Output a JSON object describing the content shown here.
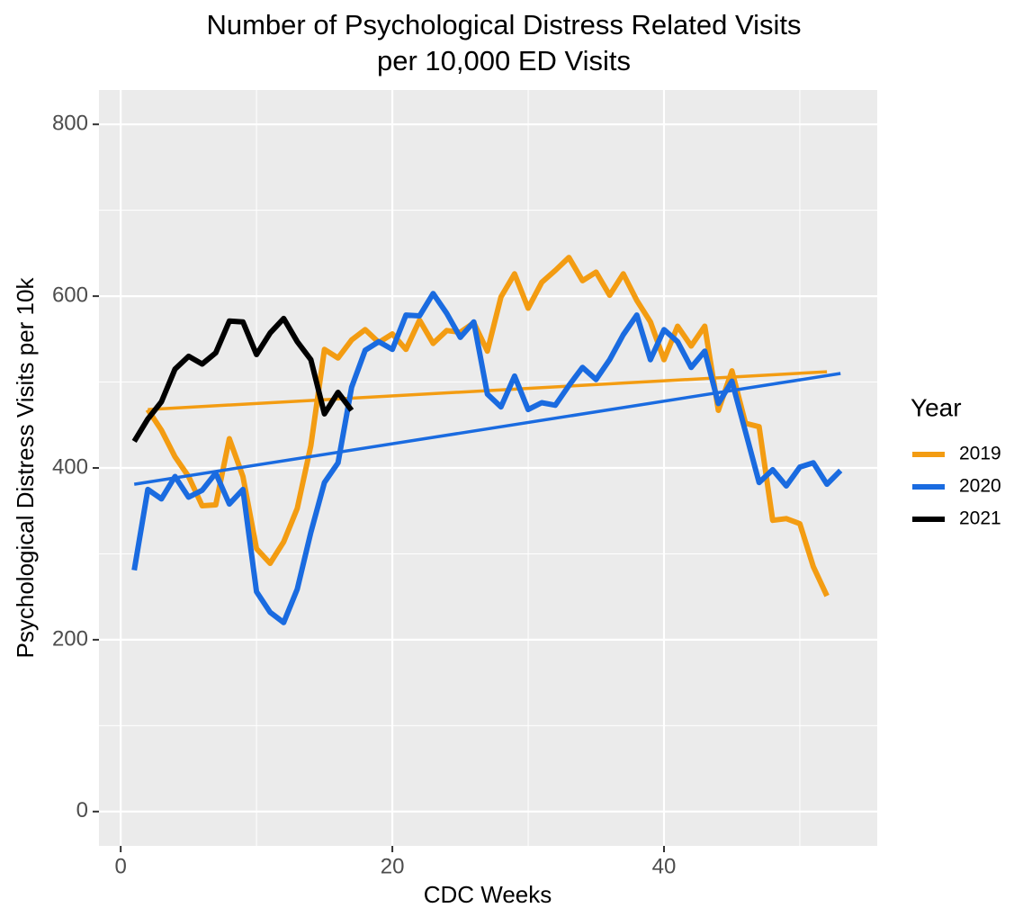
{
  "chart_data": {
    "type": "line",
    "title": "Number of Psychological Distress Related Visits",
    "subtitle": "per 10,000 ED Visits",
    "x_label": "CDC Weeks",
    "y_label": "Psychological Distress Visits per 10k",
    "legend_title": "Year",
    "legend_position": "right",
    "grid": true,
    "xlim": [
      -1.6,
      55.7
    ],
    "ylim": [
      -40,
      840
    ],
    "xticks": [
      0,
      20,
      40
    ],
    "yticks": [
      0,
      200,
      400,
      600,
      800
    ],
    "xminorticks": [
      10,
      30,
      50
    ],
    "yminorticks": [
      100,
      300,
      500,
      700
    ],
    "series": [
      {
        "name": "2019",
        "color": "#f39c12",
        "x": [
          2,
          3,
          4,
          5,
          6,
          7,
          8,
          9,
          10,
          11,
          12,
          13,
          14,
          15,
          16,
          17,
          18,
          19,
          20,
          21,
          22,
          23,
          24,
          25,
          26,
          27,
          28,
          29,
          30,
          31,
          32,
          33,
          34,
          35,
          36,
          37,
          38,
          39,
          40,
          41,
          42,
          43,
          44,
          45,
          46,
          47,
          48,
          49,
          50,
          51,
          52
        ],
        "values": [
          468,
          444,
          413,
          390,
          356,
          357,
          434,
          390,
          306,
          289,
          314,
          353,
          426,
          538,
          528,
          549,
          561,
          546,
          556,
          538,
          572,
          545,
          560,
          558,
          569,
          536,
          599,
          626,
          586,
          616,
          630,
          645,
          618,
          628,
          601,
          626,
          595,
          570,
          526,
          565,
          542,
          565,
          467,
          513,
          452,
          448,
          339,
          341,
          335,
          285,
          251
        ],
        "trend": {
          "x": [
            2,
            52
          ],
          "values": [
            468,
            512
          ]
        }
      },
      {
        "name": "2020",
        "color": "#1a6be0",
        "x": [
          1,
          2,
          3,
          4,
          5,
          6,
          7,
          8,
          9,
          10,
          11,
          12,
          13,
          14,
          15,
          16,
          17,
          18,
          19,
          20,
          21,
          22,
          23,
          24,
          25,
          26,
          27,
          28,
          29,
          30,
          31,
          32,
          33,
          34,
          35,
          36,
          37,
          38,
          39,
          40,
          41,
          42,
          43,
          44,
          45,
          46,
          47,
          48,
          49,
          50,
          51,
          52,
          53
        ],
        "values": [
          281,
          375,
          364,
          390,
          366,
          374,
          394,
          358,
          375,
          256,
          232,
          220,
          259,
          325,
          383,
          406,
          494,
          537,
          547,
          538,
          578,
          577,
          603,
          580,
          552,
          570,
          486,
          471,
          507,
          468,
          476,
          473,
          496,
          517,
          503,
          526,
          555,
          578,
          526,
          561,
          547,
          517,
          536,
          475,
          501,
          442,
          383,
          398,
          379,
          401,
          406,
          381,
          397
        ],
        "trend": {
          "x": [
            1,
            53
          ],
          "values": [
            381,
            510
          ]
        }
      },
      {
        "name": "2021",
        "color": "#000000",
        "x": [
          1,
          2,
          3,
          4,
          5,
          6,
          7,
          8,
          9,
          10,
          11,
          12,
          13,
          14,
          15,
          16,
          17
        ],
        "values": [
          431,
          457,
          477,
          515,
          530,
          521,
          534,
          571,
          570,
          532,
          557,
          574,
          547,
          526,
          463,
          488,
          467
        ]
      }
    ]
  }
}
